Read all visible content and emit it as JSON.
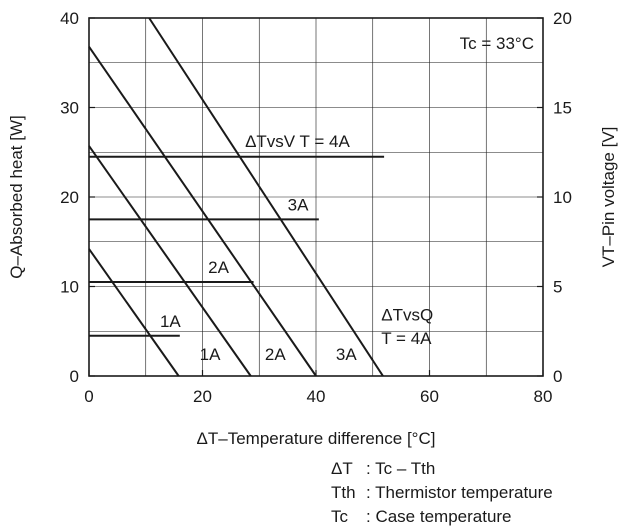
{
  "chart_data": {
    "type": "line",
    "xlabel": "ΔT–Temperature difference [°C]",
    "ylabel_left": "Q–Absorbed heat [W]",
    "ylabel_right": "VT–Pin voltage [V]",
    "xlim": [
      0,
      80
    ],
    "ylim_left": [
      0,
      40
    ],
    "ylim_right": [
      0,
      20
    ],
    "x_ticks": [
      "0",
      "20",
      "40",
      "60",
      "80"
    ],
    "y_left_ticks": [
      "0",
      "10",
      "20",
      "30",
      "40"
    ],
    "y_right_ticks": [
      "0",
      "5",
      "10",
      "15",
      "20"
    ],
    "grid": true,
    "condition_label": "Tc = 33°C",
    "series_q": [
      {
        "name": "1A",
        "points": [
          [
            0,
            14.2
          ],
          [
            15.8,
            0
          ]
        ]
      },
      {
        "name": "2A",
        "points": [
          [
            0,
            25.7
          ],
          [
            28.5,
            0
          ]
        ]
      },
      {
        "name": "3A",
        "points": [
          [
            0,
            36.8
          ],
          [
            40,
            0
          ]
        ]
      },
      {
        "name": "4A",
        "points": [
          [
            10.6,
            40
          ],
          [
            51.8,
            0
          ]
        ]
      }
    ],
    "series_v": [
      {
        "name": "1A",
        "y": 2.25,
        "x": [
          0,
          16
        ]
      },
      {
        "name": "2A",
        "y": 5.25,
        "x": [
          0,
          29
        ]
      },
      {
        "name": "3A",
        "y": 8.75,
        "x": [
          0,
          40.5
        ]
      },
      {
        "name": "4A",
        "y": 12.25,
        "x": [
          0,
          52
        ]
      }
    ],
    "annotations": [
      {
        "text": "ΔTvsV  T = 4A",
        "x": 27.5,
        "y": 25.6
      },
      {
        "text": "3A",
        "x": 35,
        "y": 18.5
      },
      {
        "text": "2A",
        "x": 21,
        "y": 11.5
      },
      {
        "text": "1A",
        "x": 12.5,
        "y": 5.5
      },
      {
        "text": "ΔTvsQ",
        "x": 51.5,
        "y": 6.2
      },
      {
        "text": "T = 4A",
        "x": 51.5,
        "y": 3.6
      },
      {
        "text": "1A",
        "x": 19.5,
        "y": 1.8
      },
      {
        "text": "2A",
        "x": 31,
        "y": 1.8
      },
      {
        "text": "3A",
        "x": 43.5,
        "y": 1.8
      }
    ],
    "notes": [
      {
        "term": "ΔT",
        "desc": ": Tc – Tth"
      },
      {
        "term": "Tth",
        "desc": ": Thermistor temperature"
      },
      {
        "term": "Tc",
        "desc": ": Case temperature"
      }
    ]
  }
}
